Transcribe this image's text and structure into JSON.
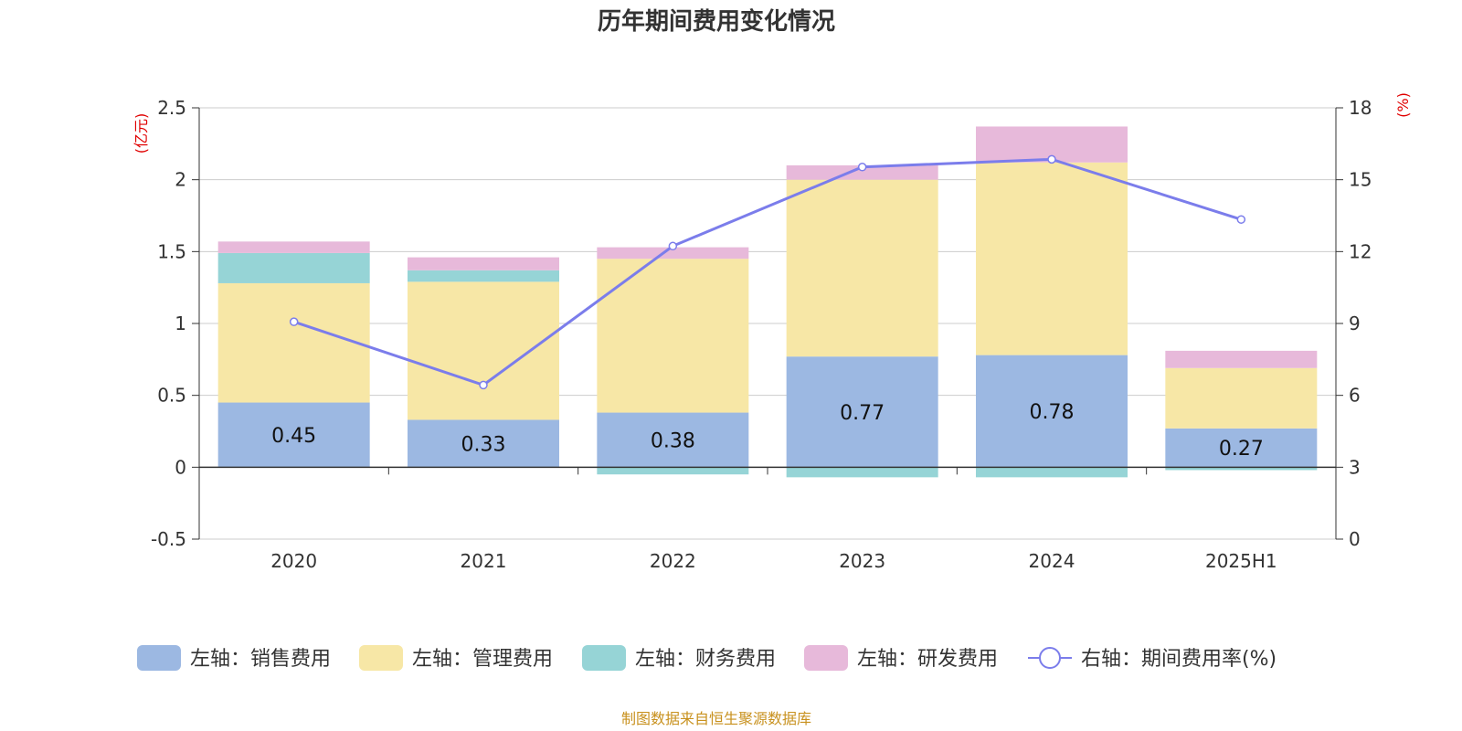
{
  "chart_data": {
    "type": "bar",
    "title": "历年期间费用变化情况",
    "categories": [
      "2020",
      "2021",
      "2022",
      "2023",
      "2024",
      "2025H1"
    ],
    "left_axis": {
      "unit": "(亿元)",
      "ylim": [
        -0.5,
        2.5
      ],
      "ticks": [
        "-0.5",
        "0",
        "0.5",
        "1",
        "1.5",
        "2",
        "2.5"
      ],
      "tick_values": [
        -0.5,
        0,
        0.5,
        1,
        1.5,
        2,
        2.5
      ]
    },
    "right_axis": {
      "unit": "(%)",
      "ylim": [
        0,
        18
      ],
      "ticks": [
        "0",
        "3",
        "6",
        "9",
        "12",
        "15",
        "18"
      ],
      "tick_values": [
        0,
        3,
        6,
        9,
        12,
        15,
        18
      ]
    },
    "grid": true,
    "legend_position": "bottom",
    "series": [
      {
        "name": "左轴：销售费用",
        "type": "bar",
        "axis": "left",
        "color": "#9cb8e2",
        "values": [
          0.45,
          0.33,
          0.38,
          0.77,
          0.78,
          0.27
        ],
        "labels": [
          "0.45",
          "0.33",
          "0.38",
          "0.77",
          "0.78",
          "0.27"
        ]
      },
      {
        "name": "左轴：管理费用",
        "type": "bar",
        "axis": "left",
        "color": "#f7e7a6",
        "values": [
          0.83,
          0.96,
          1.07,
          1.23,
          1.34,
          0.42
        ]
      },
      {
        "name": "左轴：财务费用",
        "type": "bar",
        "axis": "left",
        "color": "#96d4d6",
        "values": [
          0.21,
          0.08,
          -0.05,
          -0.07,
          -0.07,
          -0.02
        ]
      },
      {
        "name": "左轴：研发费用",
        "type": "bar",
        "axis": "left",
        "color": "#e7b9da",
        "values": [
          0.08,
          0.09,
          0.08,
          0.1,
          0.25,
          0.12
        ]
      },
      {
        "name": "右轴：期间费用率(%)",
        "type": "line",
        "axis": "right",
        "color": "#7b7deb",
        "values": [
          9.07,
          6.43,
          12.23,
          15.53,
          15.85,
          13.34
        ]
      }
    ],
    "source": "制图数据来自恒生聚源数据库"
  }
}
